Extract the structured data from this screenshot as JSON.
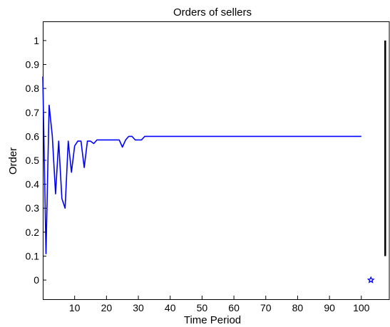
{
  "chart_data": {
    "type": "line",
    "title": "Orders of sellers",
    "xlabel": "Time Period",
    "ylabel": "Order",
    "xlim": [
      0,
      109
    ],
    "ylim": [
      -0.08,
      1.08
    ],
    "x_ticks": [
      10,
      20,
      30,
      40,
      50,
      60,
      70,
      80,
      90,
      100
    ],
    "y_ticks": [
      0,
      0.1,
      0.2,
      0.3,
      0.4,
      0.5,
      0.6,
      0.7,
      0.8,
      0.9,
      1
    ],
    "grid": false,
    "legend": "none",
    "series": [
      {
        "color": "#0000ff",
        "x": [
          0,
          1,
          2,
          3,
          4,
          5,
          6,
          7,
          8,
          9,
          10,
          11,
          12,
          13,
          14,
          15,
          16,
          17,
          18,
          19,
          20,
          21,
          22,
          23,
          24,
          25,
          26,
          27,
          28,
          29,
          30,
          31,
          32,
          33,
          34,
          35,
          100
        ],
        "y": [
          0.85,
          0.11,
          0.73,
          0.6,
          0.36,
          0.58,
          0.34,
          0.3,
          0.58,
          0.45,
          0.56,
          0.58,
          0.58,
          0.47,
          0.58,
          0.58,
          0.57,
          0.585,
          0.585,
          0.585,
          0.585,
          0.585,
          0.585,
          0.585,
          0.585,
          0.555,
          0.585,
          0.6,
          0.6,
          0.585,
          0.585,
          0.585,
          0.6,
          0.6,
          0.6,
          0.6,
          0.6
        ]
      }
    ],
    "vertical_bar": {
      "x": 107.5,
      "y_from": 0.1,
      "y_to": 1.0,
      "color": "#000000"
    },
    "marker": {
      "x": 103,
      "y": 0,
      "color": "#0000ff",
      "shape": "star"
    }
  }
}
